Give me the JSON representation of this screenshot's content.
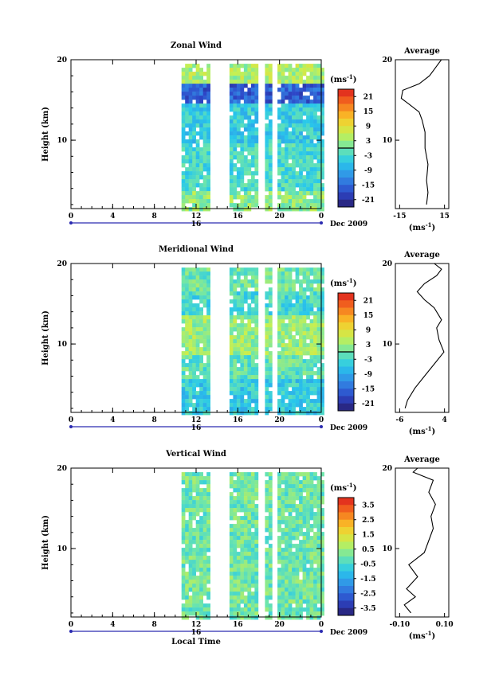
{
  "chart_data": [
    {
      "type": "heatmap",
      "title": "Zonal Wind",
      "ylabel": "Height (km)",
      "yticks": [
        "20",
        "10"
      ],
      "ylim": [
        1.5,
        20
      ],
      "xlim": [
        0,
        24
      ],
      "xticks": [
        "0",
        "4",
        "8",
        "12",
        "16",
        "20",
        "0"
      ],
      "date_label": "16",
      "date_unit": "Dec 2009",
      "colorbar": {
        "unit_label": "(ms",
        "unit_power": "-1",
        "ticks": [
          "21",
          "15",
          "9",
          "3",
          "-3",
          "-9",
          "-15",
          "-21"
        ],
        "range": [
          -24,
          24
        ],
        "zero_line_value": 0
      },
      "data_blocks_local_time": [
        [
          10.6,
          13.2
        ],
        [
          15.2,
          17.8
        ],
        [
          18.6,
          19.2
        ],
        [
          19.8,
          24
        ]
      ],
      "profile": {
        "title": "Average",
        "xticks": [
          "-15",
          "15"
        ],
        "xlim": [
          -18,
          18
        ],
        "xlabel": "(ms",
        "xlabel_power": "-1",
        "points": [
          [
            3,
            2
          ],
          [
            4,
            3.5
          ],
          [
            3,
            5
          ],
          [
            4,
            7
          ],
          [
            2,
            9
          ],
          [
            2,
            11
          ],
          [
            0,
            12.5
          ],
          [
            -2,
            13.5
          ],
          [
            -9,
            14.5
          ],
          [
            -14,
            15.2
          ],
          [
            -13,
            16.2
          ],
          [
            -2,
            17
          ],
          [
            5,
            18
          ],
          [
            9,
            19
          ],
          [
            13,
            20
          ]
        ]
      }
    },
    {
      "type": "heatmap",
      "title": "Meridional Wind",
      "ylabel": "Height (km)",
      "yticks": [
        "20",
        "10"
      ],
      "ylim": [
        1.5,
        20
      ],
      "xlim": [
        0,
        24
      ],
      "xticks": [
        "0",
        "4",
        "8",
        "12",
        "16",
        "20",
        "0"
      ],
      "date_label": "16",
      "date_unit": "Dec 2009",
      "colorbar": {
        "unit_label": "(ms",
        "unit_power": "-1",
        "ticks": [
          "21",
          "15",
          "9",
          "3",
          "-3",
          "-9",
          "-15",
          "-21"
        ],
        "range": [
          -24,
          24
        ],
        "zero_line_value": 0
      },
      "data_blocks_local_time": [
        [
          10.6,
          13.2
        ],
        [
          15.2,
          17.8
        ],
        [
          18.6,
          19.2
        ],
        [
          19.8,
          24
        ]
      ],
      "profile": {
        "title": "Average",
        "xticks": [
          "-6",
          "4"
        ],
        "xlim": [
          -7,
          4
        ],
        "xlabel": "(ms",
        "xlabel_power": "-1",
        "points": [
          [
            -5,
            2
          ],
          [
            -4.5,
            3
          ],
          [
            -3,
            4.5
          ],
          [
            -1,
            6
          ],
          [
            1,
            7.5
          ],
          [
            3,
            9
          ],
          [
            2,
            10.5
          ],
          [
            1.5,
            12
          ],
          [
            2.5,
            13
          ],
          [
            1,
            14.5
          ],
          [
            -1,
            15.5
          ],
          [
            -2.5,
            16.5
          ],
          [
            -1,
            17.5
          ],
          [
            1.5,
            18.5
          ],
          [
            2.5,
            19.3
          ],
          [
            1,
            20
          ]
        ]
      }
    },
    {
      "type": "heatmap",
      "title": "Vertical Wind",
      "ylabel": "Height (km)",
      "yticks": [
        "20",
        "10"
      ],
      "ylim": [
        1.5,
        20
      ],
      "xlim": [
        0,
        24
      ],
      "xticks": [
        "0",
        "4",
        "8",
        "12",
        "16",
        "20",
        "0"
      ],
      "date_label": "16",
      "date_unit": "Dec 2009",
      "xlabel": "Local Time",
      "colorbar": {
        "unit_label": "(ms",
        "unit_power": "-1",
        "ticks": [
          "3.5",
          "2.5",
          "1.5",
          "0.5",
          "-0.5",
          "-1.5",
          "-2.5",
          "-3.5"
        ],
        "range": [
          -4,
          4
        ],
        "zero_line_value": null
      },
      "data_blocks_local_time": [
        [
          10.6,
          13.2
        ],
        [
          15.2,
          17.8
        ],
        [
          18.6,
          19.2
        ],
        [
          19.8,
          24
        ]
      ],
      "profile": {
        "title": "Average",
        "xticks": [
          "-0.10",
          "0.10"
        ],
        "xlim": [
          -0.12,
          0.12
        ],
        "xlabel": "(ms",
        "xlabel_power": "-1",
        "points": [
          [
            -0.05,
            2
          ],
          [
            -0.08,
            3
          ],
          [
            -0.03,
            4
          ],
          [
            -0.07,
            5
          ],
          [
            -0.02,
            6.5
          ],
          [
            -0.06,
            8
          ],
          [
            0.01,
            9.5
          ],
          [
            0.03,
            11
          ],
          [
            0.05,
            12.5
          ],
          [
            0.04,
            14
          ],
          [
            0.06,
            15.5
          ],
          [
            0.03,
            17
          ],
          [
            0.05,
            18.5
          ],
          [
            -0.04,
            19.5
          ],
          [
            -0.02,
            20
          ]
        ]
      }
    }
  ]
}
